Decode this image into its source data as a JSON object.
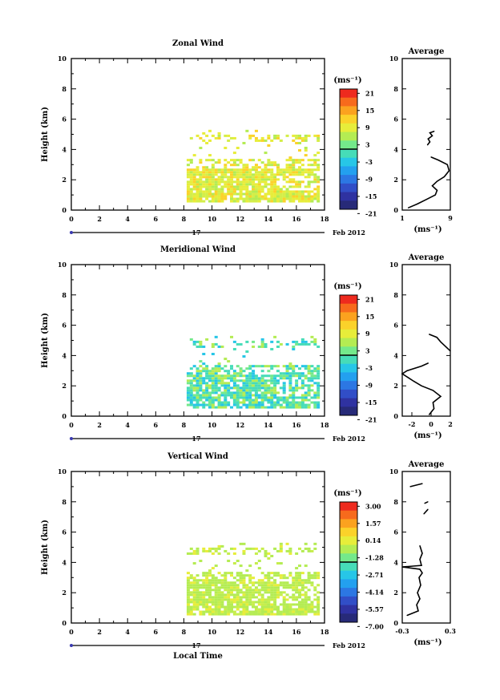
{
  "chart_data": [
    {
      "type": "heatmap",
      "title": "Zonal Wind",
      "ylabel": "Height (km)",
      "xlabel": "",
      "xlim": [
        0,
        18
      ],
      "ylim": [
        0,
        10
      ],
      "x_ticks": [
        "0",
        "2",
        "4",
        "6",
        "8",
        "10",
        "12",
        "14",
        "16",
        "18"
      ],
      "y_ticks": [
        "0",
        "2",
        "4",
        "6",
        "8",
        "10"
      ],
      "date_marker": "17",
      "date_label": "Feb 2012",
      "colorbar": {
        "unit": "(ms⁻¹)",
        "labels": [
          "21",
          "15",
          "9",
          "3",
          "-3",
          "-9",
          "-15",
          "-21"
        ],
        "colors": [
          "#ee2a1e",
          "#f76a1c",
          "#fba21f",
          "#fbd22a",
          "#e7ed3a",
          "#b4ec53",
          "#74e98b",
          "#46dcb8",
          "#27c6e7",
          "#23a0ef",
          "#2c77e3",
          "#314ec7",
          "#2f32a1",
          "#272a78"
        ]
      },
      "data_coverage": "Data present from ~8.2 to 17.5 LT below ~5 km; values mostly 3 to 9 ms⁻¹",
      "average_profile": {
        "title": "Average",
        "xlabel": "(ms⁻¹)",
        "xlim": [
          1,
          9
        ],
        "x_ticks": [
          "1",
          "9"
        ],
        "y_ticks": [
          "0",
          "2",
          "4",
          "6",
          "8",
          "10"
        ],
        "points": [
          {
            "x": 2.0,
            "y": 0.15
          },
          {
            "x": 3.5,
            "y": 0.4
          },
          {
            "x": 5.0,
            "y": 0.7
          },
          {
            "x": 6.5,
            "y": 1.0
          },
          {
            "x": 6.8,
            "y": 1.3
          },
          {
            "x": 6.0,
            "y": 1.6
          },
          {
            "x": 6.8,
            "y": 1.9
          },
          {
            "x": 8.0,
            "y": 2.2
          },
          {
            "x": 8.8,
            "y": 2.6
          },
          {
            "x": 8.5,
            "y": 3.0
          },
          {
            "x": 7.0,
            "y": 3.3
          },
          {
            "x": 5.8,
            "y": 3.5
          }
        ],
        "points_upper": [
          {
            "x": 5.2,
            "y": 4.3
          },
          {
            "x": 5.6,
            "y": 4.5
          },
          {
            "x": 5.3,
            "y": 4.7
          },
          {
            "x": 6.0,
            "y": 4.9
          },
          {
            "x": 5.6,
            "y": 5.1
          },
          {
            "x": 6.3,
            "y": 5.2
          }
        ]
      }
    },
    {
      "type": "heatmap",
      "title": "Meridional Wind",
      "ylabel": "Height (km)",
      "xlabel": "",
      "xlim": [
        0,
        18
      ],
      "ylim": [
        0,
        10
      ],
      "x_ticks": [
        "0",
        "2",
        "4",
        "6",
        "8",
        "10",
        "12",
        "14",
        "16",
        "18"
      ],
      "y_ticks": [
        "0",
        "2",
        "4",
        "6",
        "8",
        "10"
      ],
      "date_marker": "17",
      "date_label": "Feb 2012",
      "colorbar": {
        "unit": "(ms⁻¹)",
        "labels": [
          "21",
          "15",
          "9",
          "3",
          "-3",
          "-9",
          "-15",
          "-21"
        ],
        "colors": [
          "#ee2a1e",
          "#f76a1c",
          "#fba21f",
          "#fbd22a",
          "#e7ed3a",
          "#b4ec53",
          "#74e98b",
          "#46dcb8",
          "#27c6e7",
          "#23a0ef",
          "#2c77e3",
          "#314ec7",
          "#2f32a1",
          "#272a78"
        ]
      },
      "data_coverage": "Data present from ~8.2 to 17.5 LT below ~5 km; values mostly -3 to 3 ms⁻¹",
      "average_profile": {
        "title": "Average",
        "xlabel": "(ms⁻¹)",
        "xlim": [
          -3,
          2
        ],
        "x_ticks": [
          "-2",
          "0",
          "2"
        ],
        "y_ticks": [
          "0",
          "2",
          "4",
          "6",
          "8",
          "10"
        ],
        "points": [
          {
            "x": -0.2,
            "y": 0.1
          },
          {
            "x": 0.3,
            "y": 0.5
          },
          {
            "x": 0.2,
            "y": 0.9
          },
          {
            "x": 1.0,
            "y": 1.3
          },
          {
            "x": 0.2,
            "y": 1.7
          },
          {
            "x": -1.0,
            "y": 2.0
          },
          {
            "x": -1.8,
            "y": 2.3
          },
          {
            "x": -3.0,
            "y": 2.8
          },
          {
            "x": -2.5,
            "y": 3.0
          },
          {
            "x": -1.0,
            "y": 3.3
          },
          {
            "x": -0.3,
            "y": 3.5
          }
        ],
        "points_upper": [
          {
            "x": -0.2,
            "y": 5.4
          },
          {
            "x": 0.6,
            "y": 5.2
          },
          {
            "x": 1.0,
            "y": 4.9
          },
          {
            "x": 1.5,
            "y": 4.6
          },
          {
            "x": 2.0,
            "y": 4.3
          }
        ]
      }
    },
    {
      "type": "heatmap",
      "title": "Vertical Wind",
      "ylabel": "Height (km)",
      "xlabel": "Local Time",
      "xlim": [
        0,
        18
      ],
      "ylim": [
        0,
        10
      ],
      "x_ticks": [
        "0",
        "2",
        "4",
        "6",
        "8",
        "10",
        "12",
        "14",
        "16",
        "18"
      ],
      "y_ticks": [
        "0",
        "2",
        "4",
        "6",
        "8",
        "10"
      ],
      "date_marker": "17",
      "date_label": "Feb 2012",
      "colorbar": {
        "unit": "(ms⁻¹)",
        "labels": [
          "3.00",
          "1.57",
          "0.14",
          "-1.28",
          "-2.71",
          "-4.14",
          "-5.57",
          "-7.00"
        ],
        "colors": [
          "#ee2a1e",
          "#f76a1c",
          "#fba21f",
          "#fbd22a",
          "#e7ed3a",
          "#b4ec53",
          "#74e98b",
          "#46dcb8",
          "#27c6e7",
          "#23a0ef",
          "#2c77e3",
          "#314ec7",
          "#2f32a1",
          "#272a78"
        ]
      },
      "data_coverage": "Data present from ~8.2 to 17.5 LT below ~5 km; values mostly near 0 ms⁻¹",
      "average_profile": {
        "title": "Average",
        "xlabel": "(ms⁻¹)",
        "xlim": [
          -0.3,
          0.3
        ],
        "x_ticks": [
          "-0.3",
          "0.3"
        ],
        "y_ticks": [
          "0",
          "2",
          "4",
          "6",
          "8",
          "10"
        ],
        "points": [
          {
            "x": -0.24,
            "y": 0.5
          },
          {
            "x": -0.1,
            "y": 0.8
          },
          {
            "x": -0.12,
            "y": 1.2
          },
          {
            "x": -0.08,
            "y": 1.6
          },
          {
            "x": -0.11,
            "y": 2.0
          },
          {
            "x": -0.07,
            "y": 2.5
          },
          {
            "x": -0.09,
            "y": 3.0
          },
          {
            "x": -0.05,
            "y": 3.3
          },
          {
            "x": -0.08,
            "y": 3.55
          },
          {
            "x": -0.3,
            "y": 3.7
          },
          {
            "x": -0.06,
            "y": 3.8
          },
          {
            "x": -0.08,
            "y": 4.2
          },
          {
            "x": -0.05,
            "y": 4.6
          },
          {
            "x": -0.08,
            "y": 5.1
          }
        ],
        "points_upper": [
          {
            "x": -0.03,
            "y": 7.2
          },
          {
            "x": 0.02,
            "y": 7.5
          },
          {
            "x": -0.02,
            "y": 7.9
          },
          {
            "x": 0.02,
            "y": 8.0
          },
          {
            "x": -0.2,
            "y": 9.0
          },
          {
            "x": -0.05,
            "y": 9.2
          }
        ]
      }
    }
  ]
}
